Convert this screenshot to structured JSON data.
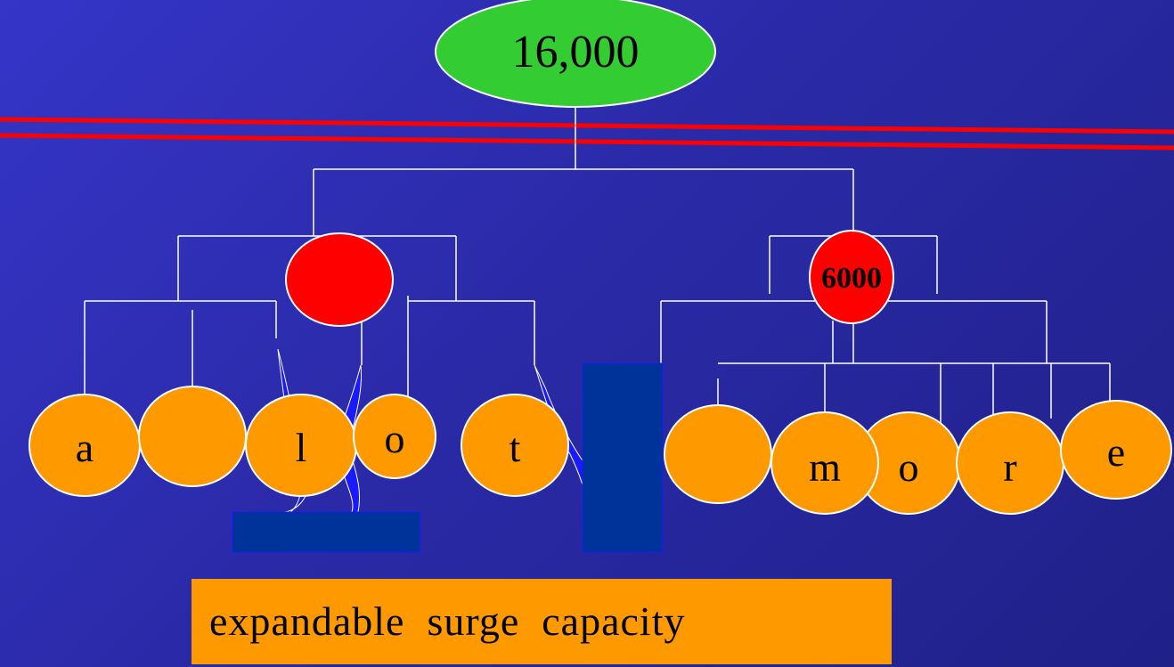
{
  "root": {
    "label": "16,000",
    "color": "#33cc33"
  },
  "left_hub": {
    "label": "",
    "color": "#ff0000"
  },
  "right_hub": {
    "label": "6000",
    "color": "#ff0000"
  },
  "leaves_left": [
    "a",
    "",
    "l",
    "o",
    "t"
  ],
  "leaves_right": [
    "",
    "m",
    "o",
    "r",
    "e"
  ],
  "leaf_color": "#ff9900",
  "divider_color": "#ff0000",
  "box_color": "#003399",
  "caption": "expandable  surge  capacity"
}
